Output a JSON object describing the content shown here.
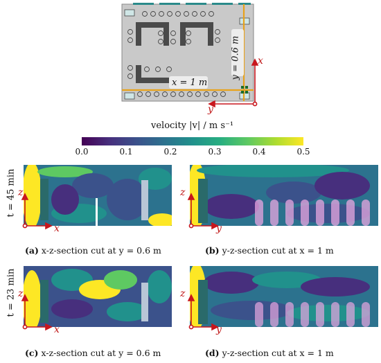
{
  "floorplan": {
    "x_annotation": "x = 1 m",
    "y_annotation": "y = 0.6 m",
    "axis_x": "x",
    "axis_y": "y"
  },
  "colorbar": {
    "label": "velocity |v| / m s⁻¹",
    "ticks": [
      "0.0",
      "0.1",
      "0.2",
      "0.3",
      "0.4",
      "0.5"
    ],
    "min": 0.0,
    "max": 0.5,
    "colormap": [
      "#440154",
      "#3b528b",
      "#21918c",
      "#5ec962",
      "#fde725"
    ]
  },
  "rows": [
    {
      "label": "t = 45 min"
    },
    {
      "label": "t = 23 min"
    }
  ],
  "panels": [
    {
      "id": "a",
      "caption_tag": "(a)",
      "caption_text": "x-z-section cut at y = 0.6 m",
      "axis_h": "x",
      "axis_v": "z"
    },
    {
      "id": "b",
      "caption_tag": "(b)",
      "caption_text": "y-z-section cut at x = 1 m",
      "axis_h": "y",
      "axis_v": "z"
    },
    {
      "id": "c",
      "caption_tag": "(c)",
      "caption_text": "x-z-section cut at y = 0.6 m",
      "axis_h": "x",
      "axis_v": "z"
    },
    {
      "id": "d",
      "caption_tag": "(d)",
      "caption_text": "y-z-section cut at x = 1 m",
      "axis_h": "y",
      "axis_v": "z"
    }
  ],
  "colors": {
    "axis": "#c8161d",
    "section_line": "#e8a21a",
    "room_floor": "#c8c8c8",
    "table": "#4a4a4a",
    "window": "#2a8a8a"
  }
}
